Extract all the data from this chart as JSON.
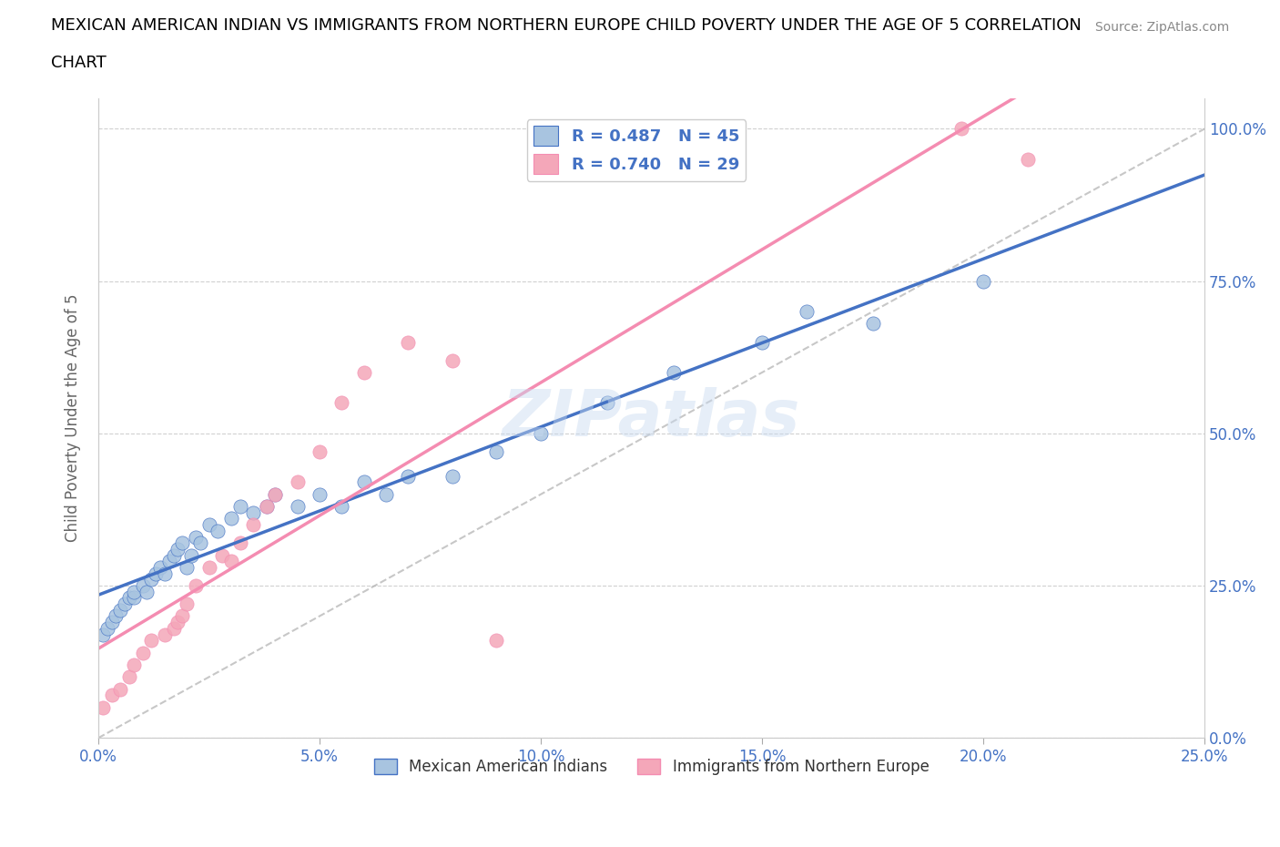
{
  "title_line1": "MEXICAN AMERICAN INDIAN VS IMMIGRANTS FROM NORTHERN EUROPE CHILD POVERTY UNDER THE AGE OF 5 CORRELATION",
  "title_line2": "CHART",
  "source": "Source: ZipAtlas.com",
  "ylabel": "Child Poverty Under the Age of 5",
  "xlim": [
    0.0,
    0.25
  ],
  "ylim": [
    0.0,
    1.05
  ],
  "yticks": [
    0.0,
    0.25,
    0.5,
    0.75,
    1.0
  ],
  "ytick_labels": [
    "0.0%",
    "25.0%",
    "50.0%",
    "75.0%",
    "100.0%"
  ],
  "xticks": [
    0.0,
    0.05,
    0.1,
    0.15,
    0.2,
    0.25
  ],
  "xtick_labels": [
    "0.0%",
    "5.0%",
    "10.0%",
    "15.0%",
    "20.0%",
    "25.0%"
  ],
  "R_blue": 0.487,
  "N_blue": 45,
  "R_pink": 0.74,
  "N_pink": 29,
  "color_blue": "#a8c4e0",
  "color_pink": "#f4a7b9",
  "line_color_blue": "#4472c4",
  "line_color_pink": "#f48cb1",
  "line_color_dashed": "#b0b0b0",
  "legend_label_blue": "Mexican American Indians",
  "legend_label_pink": "Immigrants from Northern Europe",
  "watermark": "ZIPatlas",
  "title_color": "#000000",
  "title_fontsize": 13,
  "axis_label_color": "#666666",
  "tick_label_color": "#4472c4",
  "source_color": "#888888",
  "blue_x": [
    0.001,
    0.002,
    0.003,
    0.004,
    0.005,
    0.006,
    0.007,
    0.008,
    0.008,
    0.01,
    0.011,
    0.012,
    0.013,
    0.014,
    0.015,
    0.016,
    0.017,
    0.018,
    0.019,
    0.02,
    0.021,
    0.022,
    0.023,
    0.025,
    0.027,
    0.03,
    0.032,
    0.035,
    0.038,
    0.04,
    0.045,
    0.05,
    0.055,
    0.06,
    0.065,
    0.07,
    0.08,
    0.09,
    0.1,
    0.115,
    0.13,
    0.15,
    0.16,
    0.175,
    0.2
  ],
  "blue_y": [
    0.17,
    0.18,
    0.19,
    0.2,
    0.21,
    0.22,
    0.23,
    0.23,
    0.24,
    0.25,
    0.24,
    0.26,
    0.27,
    0.28,
    0.27,
    0.29,
    0.3,
    0.31,
    0.32,
    0.28,
    0.3,
    0.33,
    0.32,
    0.35,
    0.34,
    0.36,
    0.38,
    0.37,
    0.38,
    0.4,
    0.38,
    0.4,
    0.38,
    0.42,
    0.4,
    0.43,
    0.43,
    0.47,
    0.5,
    0.55,
    0.6,
    0.65,
    0.7,
    0.68,
    0.75
  ],
  "pink_x": [
    0.001,
    0.003,
    0.005,
    0.007,
    0.008,
    0.01,
    0.012,
    0.015,
    0.017,
    0.018,
    0.019,
    0.02,
    0.022,
    0.025,
    0.028,
    0.03,
    0.032,
    0.035,
    0.038,
    0.04,
    0.045,
    0.05,
    0.055,
    0.06,
    0.07,
    0.08,
    0.09,
    0.195,
    0.21
  ],
  "pink_y": [
    0.05,
    0.07,
    0.08,
    0.1,
    0.12,
    0.14,
    0.16,
    0.17,
    0.18,
    0.19,
    0.2,
    0.22,
    0.25,
    0.28,
    0.3,
    0.29,
    0.32,
    0.35,
    0.38,
    0.4,
    0.42,
    0.47,
    0.55,
    0.6,
    0.65,
    0.62,
    0.16,
    1.0,
    0.95
  ]
}
